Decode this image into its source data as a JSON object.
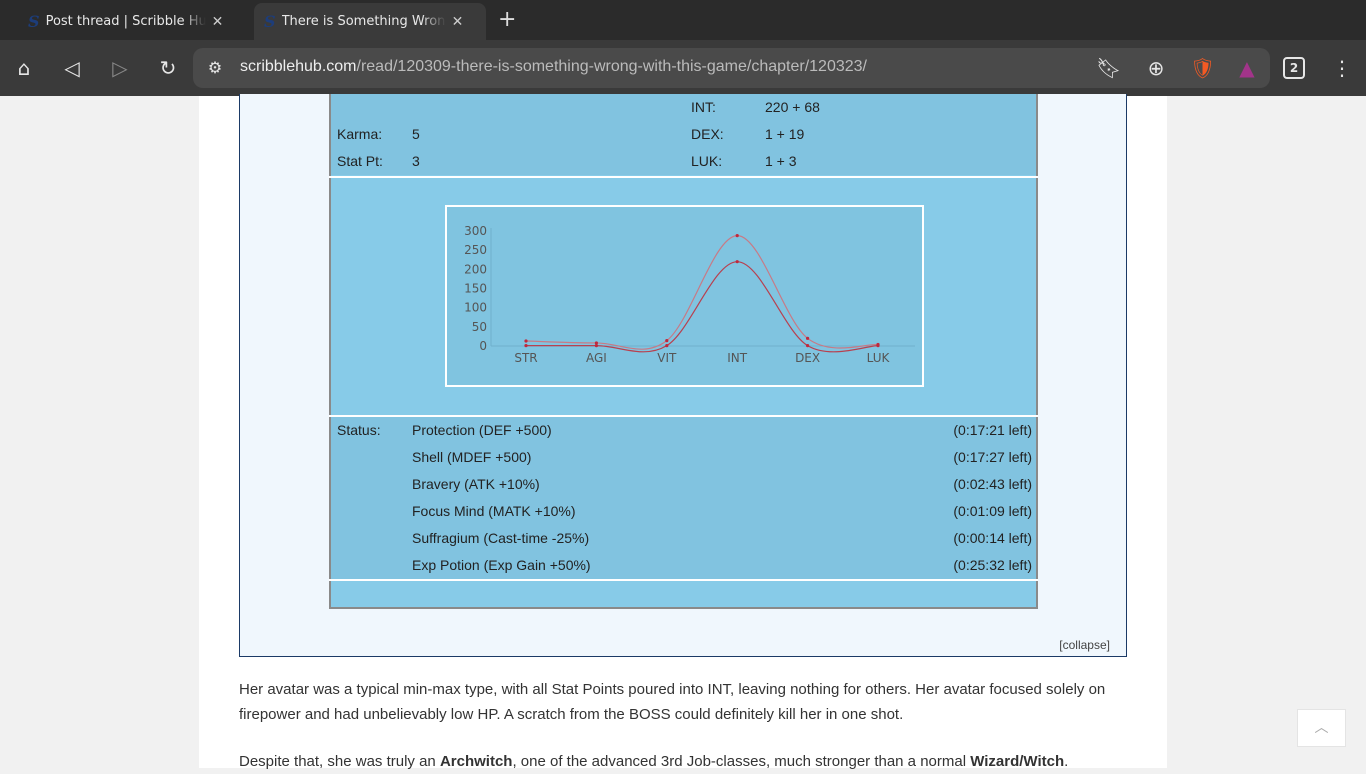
{
  "browser": {
    "tabs": [
      {
        "title": "Post thread | Scribble Hub Forums",
        "active": false
      },
      {
        "title": "There is Something Wrong with This Game",
        "active": true
      }
    ],
    "url_host": "scribblehub.com",
    "url_path": "/read/120309-there-is-something-wrong-with-this-game/chapter/120323/",
    "tab_count": "2",
    "icons": [
      "home-icon",
      "back-icon",
      "forward-icon",
      "reload-icon",
      "site-settings-icon",
      "bookmark-icon",
      "download-icon",
      "brave-shields-icon",
      "brave-rewards-icon",
      "tab-switcher-icon",
      "menu-icon"
    ]
  },
  "stats": {
    "rows": [
      {
        "label": "",
        "value": "",
        "rlabel": "INT:",
        "rvalue": "220 + 68"
      },
      {
        "label": "Karma:",
        "value": "5",
        "rlabel": "DEX:",
        "rvalue": "1 + 19"
      },
      {
        "label": "Stat Pt:",
        "value": "3",
        "rlabel": "LUK:",
        "rvalue": "1 + 3"
      }
    ],
    "status_label": "Status:",
    "status": [
      {
        "name": "Protection (DEF +500)",
        "time": "(0:17:21 left)"
      },
      {
        "name": "Shell (MDEF +500)",
        "time": "(0:17:27 left)"
      },
      {
        "name": "Bravery (ATK +10%)",
        "time": "(0:02:43 left)"
      },
      {
        "name": "Focus Mind (MATK +10%)",
        "time": "(0:01:09 left)"
      },
      {
        "name": "Suffragium (Cast-time -25%)",
        "time": "(0:00:14 left)"
      },
      {
        "name": "Exp Potion (Exp Gain +50%)",
        "time": "(0:25:32 left)"
      }
    ],
    "collapse": "[collapse]"
  },
  "chart_data": {
    "type": "line",
    "smooth": true,
    "categories": [
      "STR",
      "AGI",
      "VIT",
      "INT",
      "DEX",
      "LUK"
    ],
    "series": [
      {
        "values": [
          13,
          8,
          14,
          288,
          20,
          4
        ],
        "color": "#c77a86"
      },
      {
        "values": [
          1,
          1,
          1,
          220,
          1,
          1
        ],
        "color": "#b8404f"
      }
    ],
    "yticks": [
      0,
      50,
      100,
      150,
      200,
      250,
      300
    ],
    "ylim": [
      0,
      300
    ],
    "grid": false
  },
  "text": {
    "p1": "Her avatar was a typical min-max type, with all Stat Points poured into INT, leaving nothing for others. Her avatar focused solely on firepower and had unbelievably low HP. A scratch from the BOSS could definitely kill her in one shot.",
    "p2_a": "Despite that, she was truly an ",
    "p2_b": "Archwitch",
    "p2_c": ", one of the advanced 3rd Job-classes, much stronger than a normal ",
    "p2_d": "Wizard/Witch",
    "p2_e": "."
  }
}
